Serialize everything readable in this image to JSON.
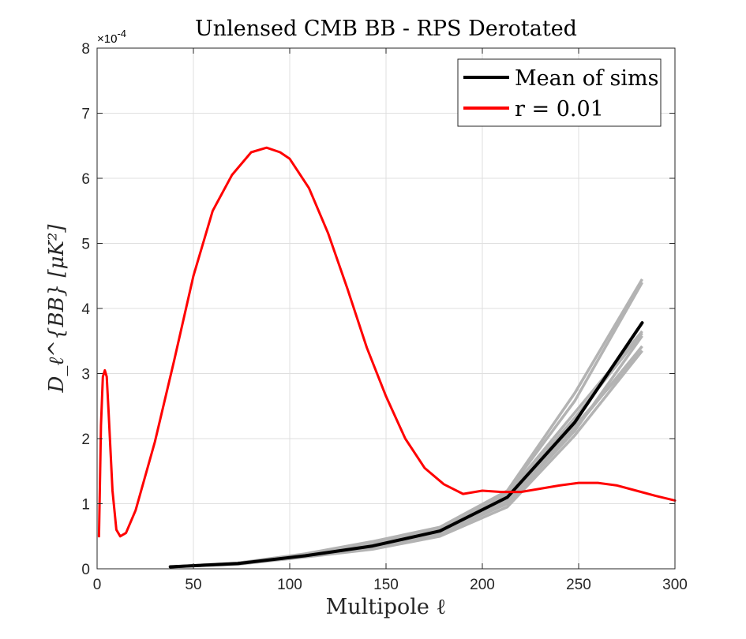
{
  "chart_data": {
    "type": "line",
    "title": "Unlensed CMB BB - RPS Derotated",
    "xlabel": "Multipole ℓ",
    "ylabel": "D_ℓ^{BB} [μK²]",
    "xlim": [
      0,
      300
    ],
    "ylim": [
      0,
      0.0008
    ],
    "y_exponent_label": "×10",
    "y_exponent_power": "-4",
    "x_ticks": [
      0,
      50,
      100,
      150,
      200,
      250,
      300
    ],
    "x_tick_labels": [
      "0",
      "50",
      "100",
      "150",
      "200",
      "250",
      "300"
    ],
    "y_ticks": [
      0,
      0.0001,
      0.0002,
      0.0003,
      0.0004,
      0.0005,
      0.0006,
      0.0007,
      0.0008
    ],
    "y_tick_labels": [
      "0",
      "1",
      "2",
      "3",
      "4",
      "5",
      "6",
      "7",
      "8"
    ],
    "grid": true,
    "legend_position": "top-right",
    "series": [
      {
        "name": "Mean of sims",
        "color": "#000000",
        "x": [
          38,
          73,
          108,
          143,
          178,
          213,
          248,
          283
        ],
        "y": [
          3e-06,
          8e-06,
          2e-05,
          3.5e-05,
          5.8e-05,
          0.00011,
          0.000225,
          0.000378
        ]
      },
      {
        "name": "r = 0.01",
        "color": "#ff0000",
        "x": [
          1,
          2,
          3,
          4,
          5,
          6,
          8,
          10,
          12,
          15,
          20,
          30,
          40,
          50,
          60,
          70,
          80,
          88,
          95,
          100,
          110,
          120,
          130,
          140,
          150,
          160,
          170,
          180,
          190,
          200,
          210,
          220,
          230,
          240,
          250,
          260,
          270,
          280,
          290,
          300
        ],
        "y": [
          5e-05,
          0.00022,
          0.000295,
          0.000305,
          0.000295,
          0.00024,
          0.00012,
          6e-05,
          5e-05,
          5.5e-05,
          9e-05,
          0.000195,
          0.00032,
          0.00045,
          0.00055,
          0.000605,
          0.00064,
          0.000647,
          0.00064,
          0.00063,
          0.000585,
          0.000515,
          0.00043,
          0.00034,
          0.000265,
          0.0002,
          0.000155,
          0.00013,
          0.000115,
          0.00012,
          0.000118,
          0.000118,
          0.000123,
          0.000128,
          0.000132,
          0.000132,
          0.000128,
          0.00012,
          0.000112,
          0.000105
        ]
      }
    ],
    "sim_realizations": {
      "color": "#b3b3b3",
      "x": [
        38,
        73,
        108,
        143,
        178,
        213,
        248,
        283
      ],
      "y": [
        [
          3e-06,
          9e-06,
          2.3e-05,
          4.2e-05,
          6.4e-05,
          0.00012,
          0.00027,
          0.000445
        ],
        [
          3e-06,
          7e-06,
          1.8e-05,
          3e-05,
          5e-05,
          9.5e-05,
          0.000205,
          0.000335
        ],
        [
          3e-06,
          8e-06,
          2.1e-05,
          3.8e-05,
          6e-05,
          0.000115,
          0.00024,
          0.000365
        ],
        [
          3e-06,
          8e-06,
          1.9e-05,
          3.3e-05,
          5.5e-05,
          0.000105,
          0.000215,
          0.000342
        ],
        [
          3e-06,
          9e-06,
          2.2e-05,
          4e-05,
          6.2e-05,
          0.000118,
          0.000258,
          0.00044
        ],
        [
          3e-06,
          7e-06,
          1.9e-05,
          3.2e-05,
          5.4e-05,
          0.0001,
          0.000212,
          0.000358
        ],
        [
          3e-06,
          8e-06,
          2.1e-05,
          3.7e-05,
          5.9e-05,
          0.000112,
          0.000232,
          0.000362
        ],
        [
          3e-06,
          8e-06,
          2e-05,
          3.4e-05,
          5.6e-05,
          0.000104,
          0.00022,
          0.000335
        ]
      ]
    }
  }
}
